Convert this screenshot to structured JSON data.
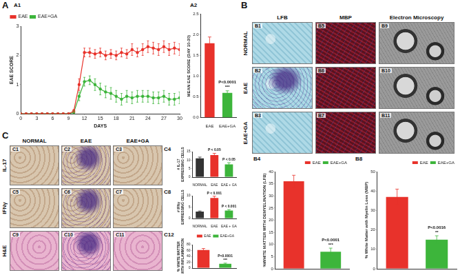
{
  "figure": {
    "sections": [
      {
        "label": "A"
      },
      {
        "label": "B",
        "column_headers": [
          "LFB",
          "MBP",
          "Electron Microscopy"
        ],
        "row_labels": [
          "NORMAL",
          "EAE",
          "EAE+GA"
        ],
        "tiles": [
          [
            "B1",
            "B5",
            "B9"
          ],
          [
            "B2",
            "B6",
            "B10"
          ],
          [
            "B3",
            "B7",
            "B11"
          ]
        ]
      },
      {
        "label": "C",
        "column_headers": [
          "NORMAL",
          "EAE",
          "EAE+GA"
        ],
        "row_labels": [
          "IL-17",
          "IFNγ",
          "H&E"
        ],
        "tiles": [
          [
            "C1",
            "C2",
            "C3"
          ],
          [
            "C5",
            "C6",
            "C7"
          ],
          [
            "C9",
            "C10",
            "C11"
          ]
        ]
      }
    ]
  },
  "chart_data": [
    {
      "panel": "A1",
      "type": "line",
      "xlabel": "DAYS",
      "ylabel": "EAE SCORE",
      "x": [
        0,
        1,
        2,
        3,
        4,
        5,
        6,
        7,
        8,
        9,
        10,
        11,
        12,
        13,
        14,
        15,
        16,
        17,
        18,
        19,
        20,
        21,
        22,
        23,
        24,
        25,
        26,
        27,
        28,
        29,
        30
      ],
      "series": [
        {
          "name": "EAE",
          "color": "#e8322b",
          "values": [
            0,
            0,
            0,
            0,
            0,
            0,
            0,
            0,
            0,
            0,
            0.1,
            1.0,
            2.1,
            2.1,
            2.05,
            2.1,
            2.0,
            2.05,
            2.0,
            2.1,
            2.05,
            2.2,
            2.1,
            2.2,
            2.3,
            2.25,
            2.2,
            2.3,
            2.2,
            2.25,
            2.2
          ],
          "errors": [
            null,
            null,
            null,
            null,
            null,
            null,
            null,
            null,
            null,
            null,
            0.05,
            0.2,
            0.15,
            0.15,
            0.15,
            0.15,
            0.15,
            0.15,
            0.15,
            0.15,
            0.15,
            0.2,
            0.15,
            0.2,
            0.2,
            0.2,
            0.2,
            0.2,
            0.2,
            0.2,
            0.2
          ]
        },
        {
          "name": "EAE+GA",
          "color": "#3db53b",
          "values": [
            0,
            0,
            0,
            0,
            0,
            0,
            0,
            0,
            0,
            0,
            0.05,
            0.6,
            1.1,
            1.15,
            1.0,
            0.85,
            0.75,
            0.7,
            0.6,
            0.5,
            0.6,
            0.55,
            0.6,
            0.6,
            0.6,
            0.55,
            0.55,
            0.6,
            0.5,
            0.5,
            0.55
          ],
          "errors": [
            null,
            null,
            null,
            null,
            null,
            null,
            null,
            null,
            null,
            null,
            0.05,
            0.15,
            0.15,
            0.15,
            0.2,
            0.2,
            0.2,
            0.2,
            0.2,
            0.2,
            0.2,
            0.2,
            0.2,
            0.2,
            0.2,
            0.2,
            0.2,
            0.2,
            0.2,
            0.2,
            0.2
          ]
        }
      ],
      "xlim": [
        0,
        30
      ],
      "xticks": [
        0,
        3,
        6,
        9,
        12,
        15,
        18,
        21,
        24,
        27,
        30
      ],
      "ylim": [
        0,
        3
      ],
      "yticks": [
        0,
        1,
        2,
        3
      ],
      "grid": false,
      "legend": "top-left",
      "marker": "circle"
    },
    {
      "panel": "A2",
      "type": "bar",
      "ylabel": "MEAN EAE SCORE (DAY 10-30)",
      "categories": [
        "EAE",
        "EAE+GA"
      ],
      "values": [
        1.8,
        0.6
      ],
      "errors": [
        0.15,
        0.05
      ],
      "colors": [
        "#e8322b",
        "#3db53b"
      ],
      "ylim": [
        0,
        2.5
      ],
      "yticks": [
        {
          "value": 0,
          "label": "0.0"
        },
        0.5,
        {
          "value": 1,
          "label": "1.0"
        },
        1.5,
        {
          "value": 2,
          "label": "2.0"
        },
        2.5
      ],
      "grid": false,
      "annotations": [
        {
          "text": "P<0.0001",
          "category": "EAE+GA"
        },
        {
          "text": "***",
          "category": "EAE+GA"
        }
      ]
    },
    {
      "panel": "B4",
      "type": "bar",
      "ylabel": "%WHITE MATTER WITH DEMYELINATION (LFB)",
      "categories": [
        "EAE",
        "EAE+GA"
      ],
      "values": [
        36,
        7
      ],
      "errors": [
        2.5,
        1.5
      ],
      "colors": [
        "#e8322b",
        "#3db53b"
      ],
      "ylim": [
        0,
        40
      ],
      "yticks": [
        0,
        5,
        10,
        15,
        20,
        25,
        30,
        35,
        40
      ],
      "grid": false,
      "legend": "top-right",
      "tick_labels": "y",
      "annotations": [
        {
          "text": "P<0.0001",
          "category": "EAE+GA"
        },
        {
          "text": "***",
          "category": "EAE+GA"
        }
      ]
    },
    {
      "panel": "B8",
      "type": "bar",
      "ylabel": "% White Matter with Myelin Loss (MBP)",
      "categories": [
        "EAE",
        "EAE+GA"
      ],
      "values": [
        37,
        15
      ],
      "errors": [
        4,
        2
      ],
      "colors": [
        "#e8322b",
        "#3db53b"
      ],
      "ylim": [
        0,
        50
      ],
      "yticks": [
        0,
        10,
        20,
        30,
        40,
        50
      ],
      "grid": false,
      "legend": "top-right",
      "tick_labels": "y",
      "annotations": [
        {
          "text": "P<0.0016",
          "category": "EAE+GA"
        },
        {
          "text": "**",
          "category": "EAE+GA"
        }
      ]
    },
    {
      "panel": "C4",
      "type": "bar",
      "ylabel": "# IL-17 EXPRESSING CELLS",
      "categories": [
        "NORMAL",
        "EAE",
        "EAE + GA"
      ],
      "values": [
        11,
        13,
        7.5
      ],
      "errors": [
        0.8,
        1,
        1
      ],
      "colors": [
        "#333333",
        "#e8322b",
        "#3db53b"
      ],
      "ylim": [
        0,
        15
      ],
      "yticks": [
        0,
        5,
        10,
        15
      ],
      "grid": false,
      "annotations": [
        {
          "text": "P < 0.05",
          "category": "EAE"
        },
        {
          "text": "P < 0.05",
          "category": "EAE + GA"
        }
      ]
    },
    {
      "panel": "C8",
      "type": "bar",
      "ylabel": "# IFNγ EXPRESSING CELLS",
      "categories": [
        "NORMAL",
        "EAE",
        "EAE + GA"
      ],
      "values": [
        3,
        9,
        3.5
      ],
      "errors": [
        0.3,
        0.8,
        0.4
      ],
      "colors": [
        "#333333",
        "#e8322b",
        "#3db53b"
      ],
      "ylim": [
        0,
        10
      ],
      "yticks": [
        0,
        5,
        10
      ],
      "grid": false,
      "annotations": [
        {
          "text": "P < 0.001",
          "category": "EAE"
        },
        {
          "text": "P < 0.001",
          "category": "EAE + GA"
        }
      ]
    },
    {
      "panel": "C12",
      "type": "bar",
      "ylabel": "% WHITE MATTER WITH INFLAMMATION",
      "categories": [
        "EAE",
        "EAE+GA"
      ],
      "values": [
        62,
        15
      ],
      "errors": [
        5,
        2
      ],
      "colors": [
        "#e8322b",
        "#3db53b"
      ],
      "ylim": [
        0,
        80
      ],
      "yticks": [
        0,
        20,
        40,
        60,
        80
      ],
      "grid": false,
      "legend": "top-right",
      "tick_labels": "y",
      "annotations": [
        {
          "text": "P<0.0001",
          "category": "EAE+GA"
        },
        {
          "text": "***",
          "category": "EAE+GA"
        }
      ]
    }
  ]
}
